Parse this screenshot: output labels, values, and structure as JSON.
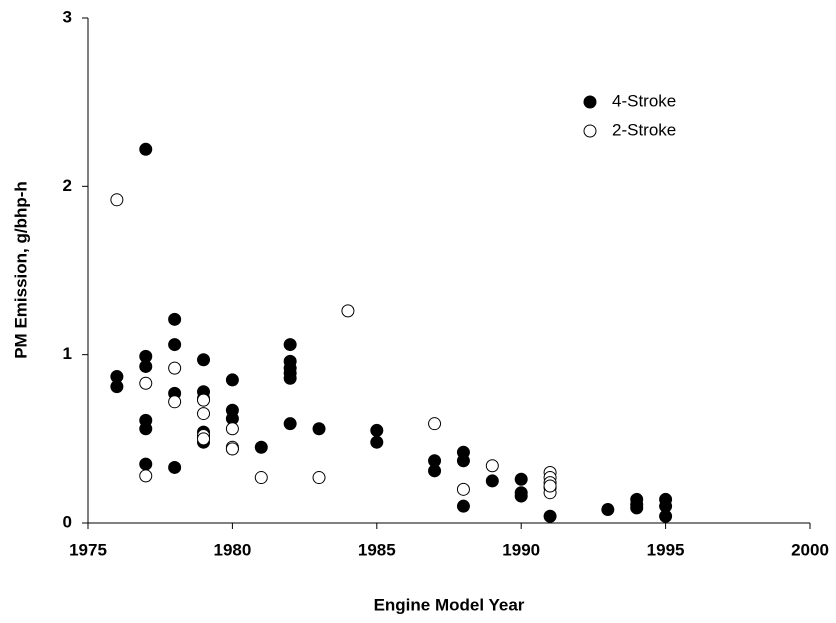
{
  "chart_data": {
    "type": "scatter",
    "x_label": "Engine Model Year",
    "y_label": "PM Emission, g/bhp-h",
    "xlim": [
      1975,
      2000
    ],
    "xticks": [
      1975,
      1980,
      1985,
      1990,
      1995,
      2000
    ],
    "ylim": [
      0,
      3
    ],
    "yticks": [
      0,
      1,
      2,
      3
    ],
    "legend": "upper right",
    "series": [
      {
        "name": "4-Stroke",
        "color": "#000000",
        "x": [
          1976,
          1976,
          1977,
          1977,
          1977,
          1977,
          1977,
          1977,
          1978,
          1978,
          1978,
          1978,
          1979,
          1979,
          1979,
          1979,
          1979,
          1979,
          1980,
          1980,
          1980,
          1980,
          1981,
          1982,
          1982,
          1982,
          1982,
          1982,
          1982,
          1983,
          1985,
          1985,
          1987,
          1987,
          1988,
          1988,
          1988,
          1989,
          1990,
          1990,
          1990,
          1991,
          1993,
          1994,
          1994,
          1994,
          1995,
          1995,
          1995
        ],
        "values": [
          0.81,
          0.87,
          2.22,
          0.99,
          0.93,
          0.61,
          0.56,
          0.35,
          1.21,
          1.06,
          0.77,
          0.33,
          0.97,
          0.78,
          0.74,
          0.54,
          0.51,
          0.48,
          0.85,
          0.67,
          0.62,
          0.44,
          0.45,
          1.06,
          0.96,
          0.92,
          0.89,
          0.86,
          0.59,
          0.56,
          0.55,
          0.48,
          0.37,
          0.31,
          0.42,
          0.37,
          0.1,
          0.25,
          0.26,
          0.18,
          0.16,
          0.04,
          0.08,
          0.14,
          0.11,
          0.09,
          0.14,
          0.1,
          0.04
        ]
      },
      {
        "name": "2-Stroke",
        "color": "#ffffff",
        "x": [
          1976,
          1977,
          1977,
          1978,
          1978,
          1979,
          1979,
          1979,
          1979,
          1980,
          1980,
          1980,
          1981,
          1983,
          1984,
          1987,
          1988,
          1989,
          1991,
          1991,
          1991,
          1991,
          1991,
          1991
        ],
        "values": [
          1.92,
          0.83,
          0.28,
          0.92,
          0.72,
          0.73,
          0.65,
          0.52,
          0.5,
          0.56,
          0.45,
          0.44,
          0.27,
          0.27,
          1.26,
          0.59,
          0.2,
          0.34,
          0.3,
          0.27,
          0.24,
          0.21,
          0.18,
          0.22
        ]
      }
    ]
  }
}
